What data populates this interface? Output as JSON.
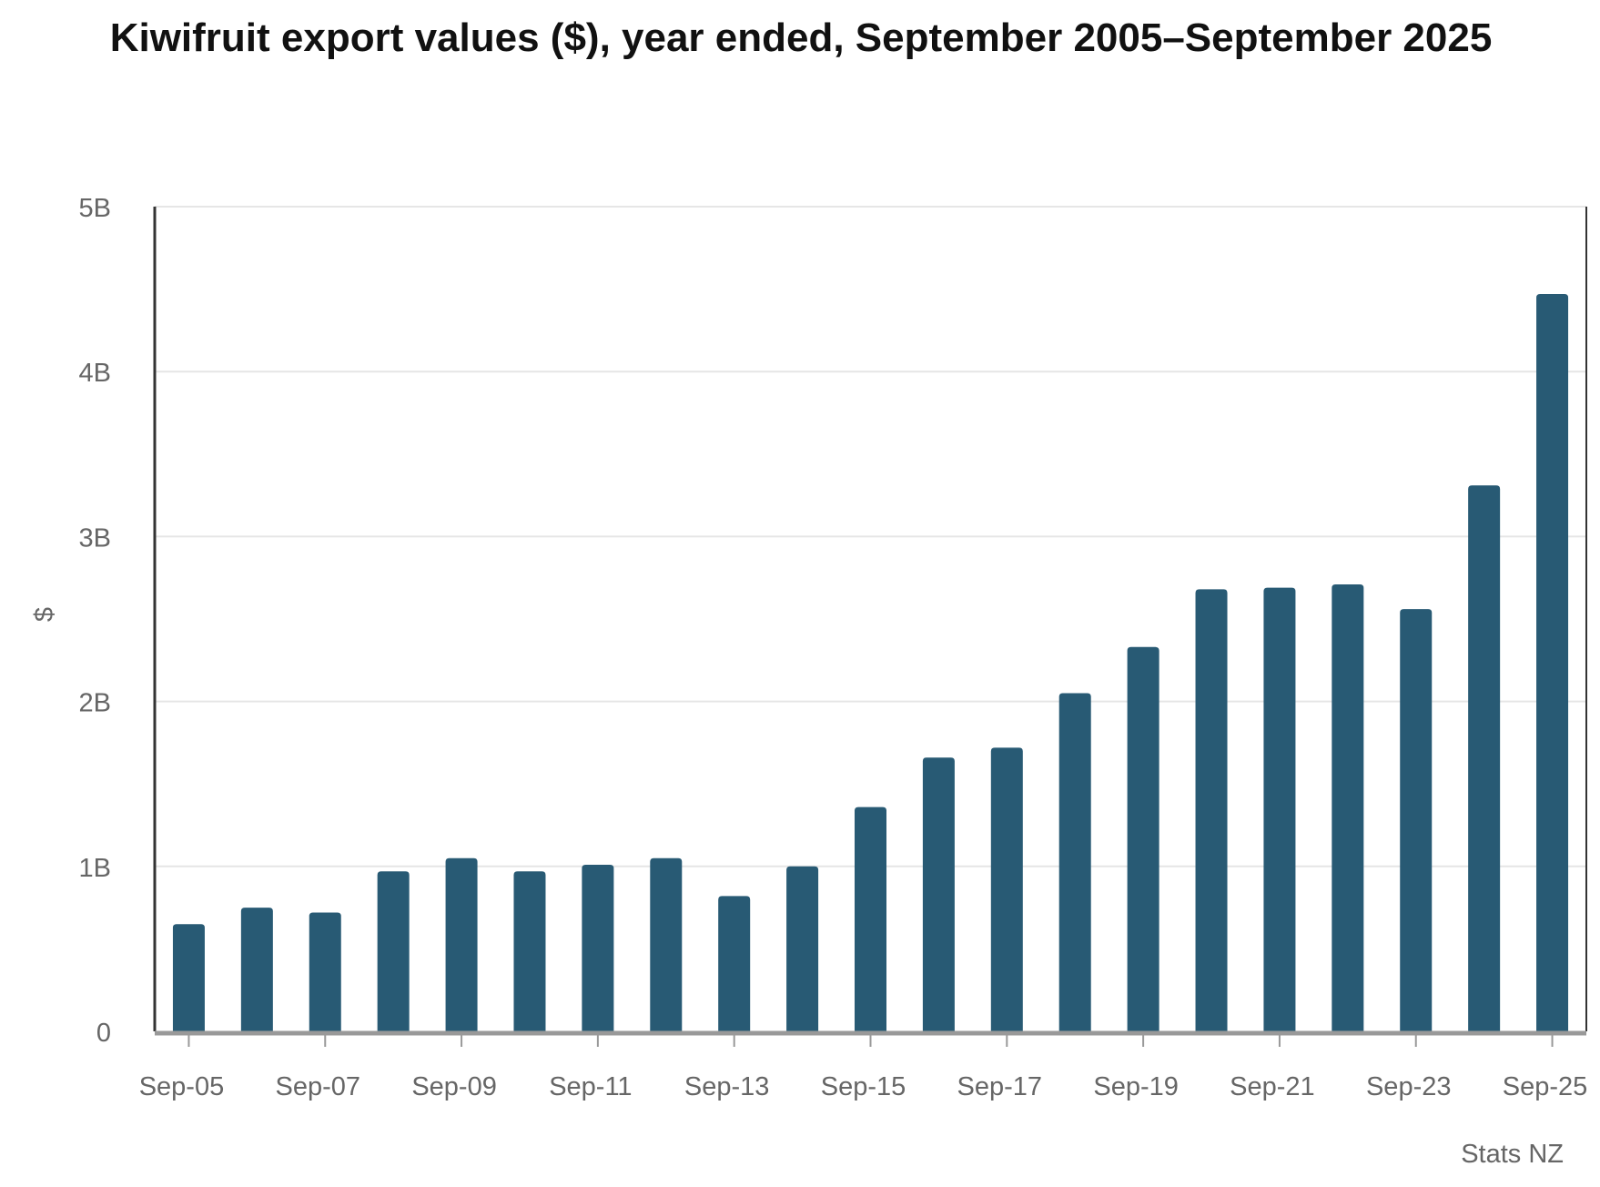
{
  "chart_data": {
    "type": "bar",
    "title": "Kiwifruit export values ($), year ended, September 2005–September 2025",
    "xlabel": "",
    "ylabel": "$",
    "ylim": [
      0,
      5000000000
    ],
    "y_ticks": [
      {
        "value": 0,
        "label": "0"
      },
      {
        "value": 1000000000,
        "label": "1B"
      },
      {
        "value": 2000000000,
        "label": "2B"
      },
      {
        "value": 3000000000,
        "label": "3B"
      },
      {
        "value": 4000000000,
        "label": "4B"
      },
      {
        "value": 5000000000,
        "label": "5B"
      }
    ],
    "categories": [
      "Sep-05",
      "Sep-06",
      "Sep-07",
      "Sep-08",
      "Sep-09",
      "Sep-10",
      "Sep-11",
      "Sep-12",
      "Sep-13",
      "Sep-14",
      "Sep-15",
      "Sep-16",
      "Sep-17",
      "Sep-18",
      "Sep-19",
      "Sep-20",
      "Sep-21",
      "Sep-22",
      "Sep-23",
      "Sep-24",
      "Sep-25"
    ],
    "x_tick_labels": [
      "Sep-05",
      "Sep-07",
      "Sep-09",
      "Sep-11",
      "Sep-13",
      "Sep-15",
      "Sep-17",
      "Sep-19",
      "Sep-21",
      "Sep-23",
      "Sep-25"
    ],
    "values": [
      650000000,
      750000000,
      720000000,
      970000000,
      1050000000,
      970000000,
      1010000000,
      1050000000,
      820000000,
      1000000000,
      1360000000,
      1660000000,
      1720000000,
      2050000000,
      2330000000,
      2680000000,
      2690000000,
      2710000000,
      2560000000,
      3310000000,
      4470000000
    ],
    "grid": true,
    "source": "Stats NZ"
  },
  "colors": {
    "bar": "#285A74",
    "grid": "#e6e6e6",
    "axis": "#333333",
    "baseline": "#999999",
    "tick_text": "#666666"
  }
}
